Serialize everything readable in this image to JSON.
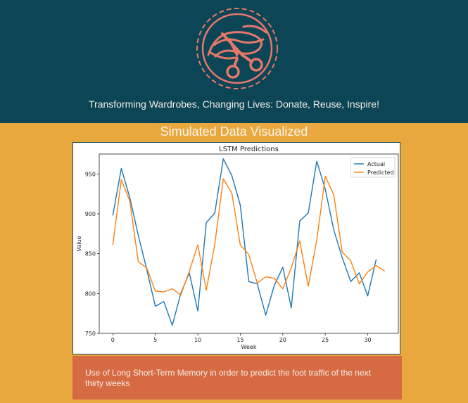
{
  "header": {
    "logo_icon": "scissors-cutting-fabric-icon",
    "tagline": "Transforming Wardrobes, Changing Lives: Donate, Reuse, Inspire!"
  },
  "section": {
    "title": "Simulated Data Visualized",
    "caption": "Use of Long Short-Term Memory in order to predict the foot traffic of the next thirty weeks"
  },
  "colors": {
    "header_bg": "#0c4555",
    "page_bg": "#e8a83e",
    "caption_bg": "#d56a43",
    "logo": "#e7786a"
  },
  "chart_data": {
    "type": "line",
    "title": "LSTM Predictions",
    "xlabel": "Week",
    "ylabel": "Value",
    "xlim": [
      -1.6,
      33.6
    ],
    "ylim": [
      750,
      975
    ],
    "xticks": [
      0,
      5,
      10,
      15,
      20,
      25,
      30
    ],
    "yticks": [
      750,
      800,
      850,
      900,
      950
    ],
    "legend_position": "top-right",
    "x": [
      0,
      1,
      2,
      3,
      4,
      5,
      6,
      7,
      8,
      9,
      10,
      11,
      12,
      13,
      14,
      15,
      16,
      17,
      18,
      19,
      20,
      21,
      22,
      23,
      24,
      25,
      26,
      27,
      28,
      29,
      30,
      31,
      32
    ],
    "series": [
      {
        "name": "Actual",
        "color": "#1f77b4",
        "values": [
          898,
          957,
          920,
          873,
          830,
          784,
          790,
          760,
          800,
          826,
          778,
          889,
          901,
          969,
          948,
          911,
          815,
          812,
          773,
          810,
          833,
          782,
          891,
          901,
          966,
          931,
          880,
          845,
          815,
          826,
          797,
          843,
          null
        ]
      },
      {
        "name": "Predicted",
        "color": "#ff7f0e",
        "values": [
          861,
          943,
          916,
          840,
          832,
          803,
          802,
          806,
          798,
          828,
          861,
          804,
          862,
          944,
          926,
          861,
          849,
          813,
          821,
          819,
          806,
          832,
          866,
          809,
          867,
          947,
          924,
          852,
          841,
          812,
          827,
          835,
          828
        ]
      }
    ]
  }
}
